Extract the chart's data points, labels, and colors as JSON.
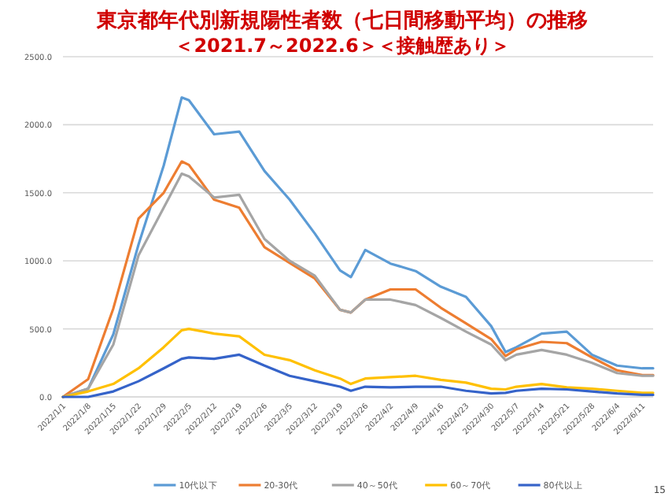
{
  "chart_data": {
    "type": "line",
    "title": "東京都年代別新規陽性者数（七日間移動平均）の推移",
    "subtitle": "＜2021.7～2022.6＞＜接触歴あり＞",
    "x": [
      "2022-01-01",
      "2022-01-08",
      "2022-01-15",
      "2022-01-22",
      "2022-01-29",
      "2022-02-03",
      "2022-02-05",
      "2022-02-12",
      "2022-02-19",
      "2022-02-26",
      "2022-03-05",
      "2022-03-12",
      "2022-03-19",
      "2022-03-22",
      "2022-03-26",
      "2022-04-02",
      "2022-04-09",
      "2022-04-16",
      "2022-04-23",
      "2022-04-30",
      "2022-05-04",
      "2022-05-07",
      "2022-05-14",
      "2022-05-21",
      "2022-05-28",
      "2022-06-04",
      "2022-06-11",
      "2022-06-14"
    ],
    "series": [
      {
        "name": "10代以下",
        "color": "#5b9bd5",
        "values": [
          0,
          60,
          460,
          1120,
          1700,
          2200,
          2180,
          1930,
          1950,
          1660,
          1450,
          1200,
          930,
          880,
          1080,
          980,
          925,
          810,
          735,
          520,
          330,
          365,
          465,
          480,
          310,
          230,
          210,
          210
        ]
      },
      {
        "name": "20-30代",
        "color": "#ed7d31",
        "values": [
          0,
          130,
          650,
          1310,
          1500,
          1730,
          1705,
          1450,
          1390,
          1100,
          985,
          870,
          640,
          620,
          715,
          790,
          790,
          655,
          540,
          425,
          300,
          350,
          405,
          395,
          290,
          195,
          160,
          160
        ]
      },
      {
        "name": "40～50代",
        "color": "#a5a5a5",
        "values": [
          0,
          60,
          385,
          1040,
          1390,
          1640,
          1620,
          1465,
          1485,
          1160,
          1000,
          890,
          640,
          620,
          715,
          715,
          675,
          580,
          480,
          385,
          270,
          310,
          345,
          310,
          250,
          175,
          155,
          155
        ]
      },
      {
        "name": "60～70代",
        "color": "#ffc000",
        "values": [
          0,
          40,
          95,
          210,
          365,
          490,
          500,
          465,
          445,
          310,
          270,
          195,
          135,
          95,
          135,
          145,
          155,
          125,
          105,
          60,
          55,
          75,
          95,
          70,
          60,
          45,
          30,
          30
        ]
      },
      {
        "name": "80代以上",
        "color": "#3563c9",
        "values": [
          0,
          0,
          40,
          115,
          210,
          280,
          290,
          280,
          310,
          230,
          155,
          115,
          75,
          45,
          75,
          70,
          75,
          75,
          45,
          25,
          30,
          45,
          60,
          55,
          40,
          25,
          15,
          15
        ]
      }
    ],
    "xlim": [
      "2022-01-01",
      "2022-06-14"
    ],
    "xticks": [
      {
        "value": "2022-01-01",
        "label": "2022/1/1"
      },
      {
        "value": "2022-01-08",
        "label": "2022/1/8"
      },
      {
        "value": "2022-01-15",
        "label": "2022/1/15"
      },
      {
        "value": "2022-01-22",
        "label": "2022/1/22"
      },
      {
        "value": "2022-01-29",
        "label": "2022/1/29"
      },
      {
        "value": "2022-02-05",
        "label": "2022/2/5"
      },
      {
        "value": "2022-02-12",
        "label": "2022/2/12"
      },
      {
        "value": "2022-02-19",
        "label": "2022/2/19"
      },
      {
        "value": "2022-02-26",
        "label": "2022/2/26"
      },
      {
        "value": "2022-03-05",
        "label": "2022/3/5"
      },
      {
        "value": "2022-03-12",
        "label": "2022/3/12"
      },
      {
        "value": "2022-03-19",
        "label": "2022/3/19"
      },
      {
        "value": "2022-03-26",
        "label": "2022/3/26"
      },
      {
        "value": "2022-04-02",
        "label": "2022/4/2"
      },
      {
        "value": "2022-04-09",
        "label": "2022/4/9"
      },
      {
        "value": "2022-04-16",
        "label": "2022/4/16"
      },
      {
        "value": "2022-04-23",
        "label": "2022/4/23"
      },
      {
        "value": "2022-04-30",
        "label": "2022/4/30"
      },
      {
        "value": "2022-05-07",
        "label": "2022/5/7"
      },
      {
        "value": "2022-05-14",
        "label": "2022/5/14"
      },
      {
        "value": "2022-05-21",
        "label": "2022/5/21"
      },
      {
        "value": "2022-05-28",
        "label": "2022/5/28"
      },
      {
        "value": "2022-06-04",
        "label": "2022/6/4"
      },
      {
        "value": "2022-06-11",
        "label": "2022/6/11"
      }
    ],
    "ylim": [
      0,
      2500
    ],
    "yticks": [
      {
        "value": 0,
        "label": "0.0"
      },
      {
        "value": 500,
        "label": "500.0"
      },
      {
        "value": 1000,
        "label": "1000.0"
      },
      {
        "value": 1500,
        "label": "1500.0"
      },
      {
        "value": 2000,
        "label": "2000.0"
      },
      {
        "value": 2500,
        "label": "2500.0"
      }
    ],
    "grid": "y",
    "legend": "bottom",
    "marker": "none",
    "line_style": "solid",
    "annotations": [
      "15"
    ]
  }
}
